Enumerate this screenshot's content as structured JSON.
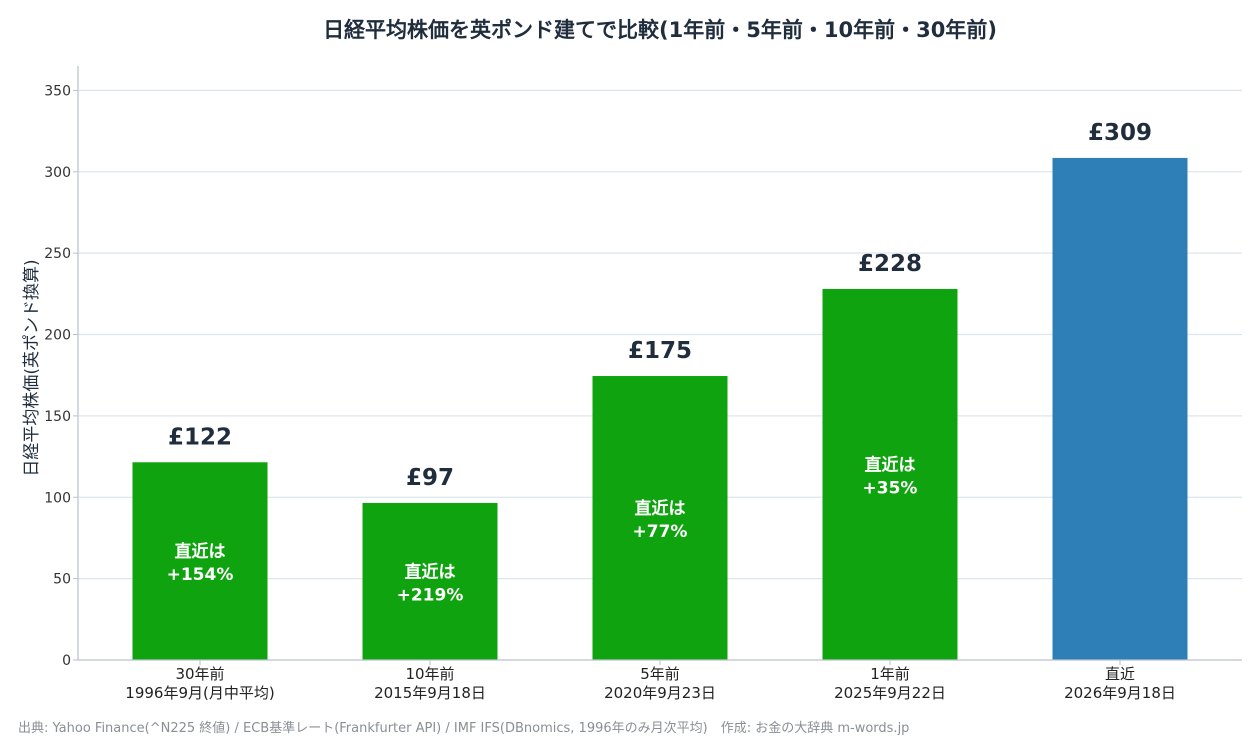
{
  "chart_data": {
    "type": "bar",
    "title": "日経平均株価を英ポンド建てで比較(1年前・5年前・10年前・30年前)",
    "ylabel": "日経平均株価(英ポンド換算)",
    "xlabel": "",
    "ylim": [
      0,
      365
    ],
    "yticks": [
      "0",
      "50",
      "100",
      "150",
      "200",
      "250",
      "300",
      "350"
    ],
    "ytick_values": [
      0,
      50,
      100,
      150,
      200,
      250,
      300,
      350
    ],
    "grid": true,
    "categories": [
      "30年前\n1996年9月(月中平均)",
      "10年前\n2015年9月18日",
      "5年前\n2020年9月23日",
      "1年前\n2025年9月22日",
      "直近\n2026年9月18日"
    ],
    "values": [
      121.5,
      96.5,
      174.5,
      228,
      308.5
    ],
    "value_labels": [
      "£122",
      "£97",
      "£175",
      "£228",
      "£309"
    ],
    "inner_labels": [
      "直近は\n+154%",
      "直近は\n+219%",
      "直近は\n+77%",
      "直近は\n+35%",
      ""
    ],
    "colors": [
      "#0fa30f",
      "#0fa30f",
      "#0fa30f",
      "#0fa30f",
      "#2e7fb8"
    ]
  },
  "source": "出典: Yahoo Finance(^N225 終値) / ECB基準レート(Frankfurter API) / IMF IFS(DBnomics, 1996年のみ月次平均)　作成: お金の大辞典 m-words.jp"
}
